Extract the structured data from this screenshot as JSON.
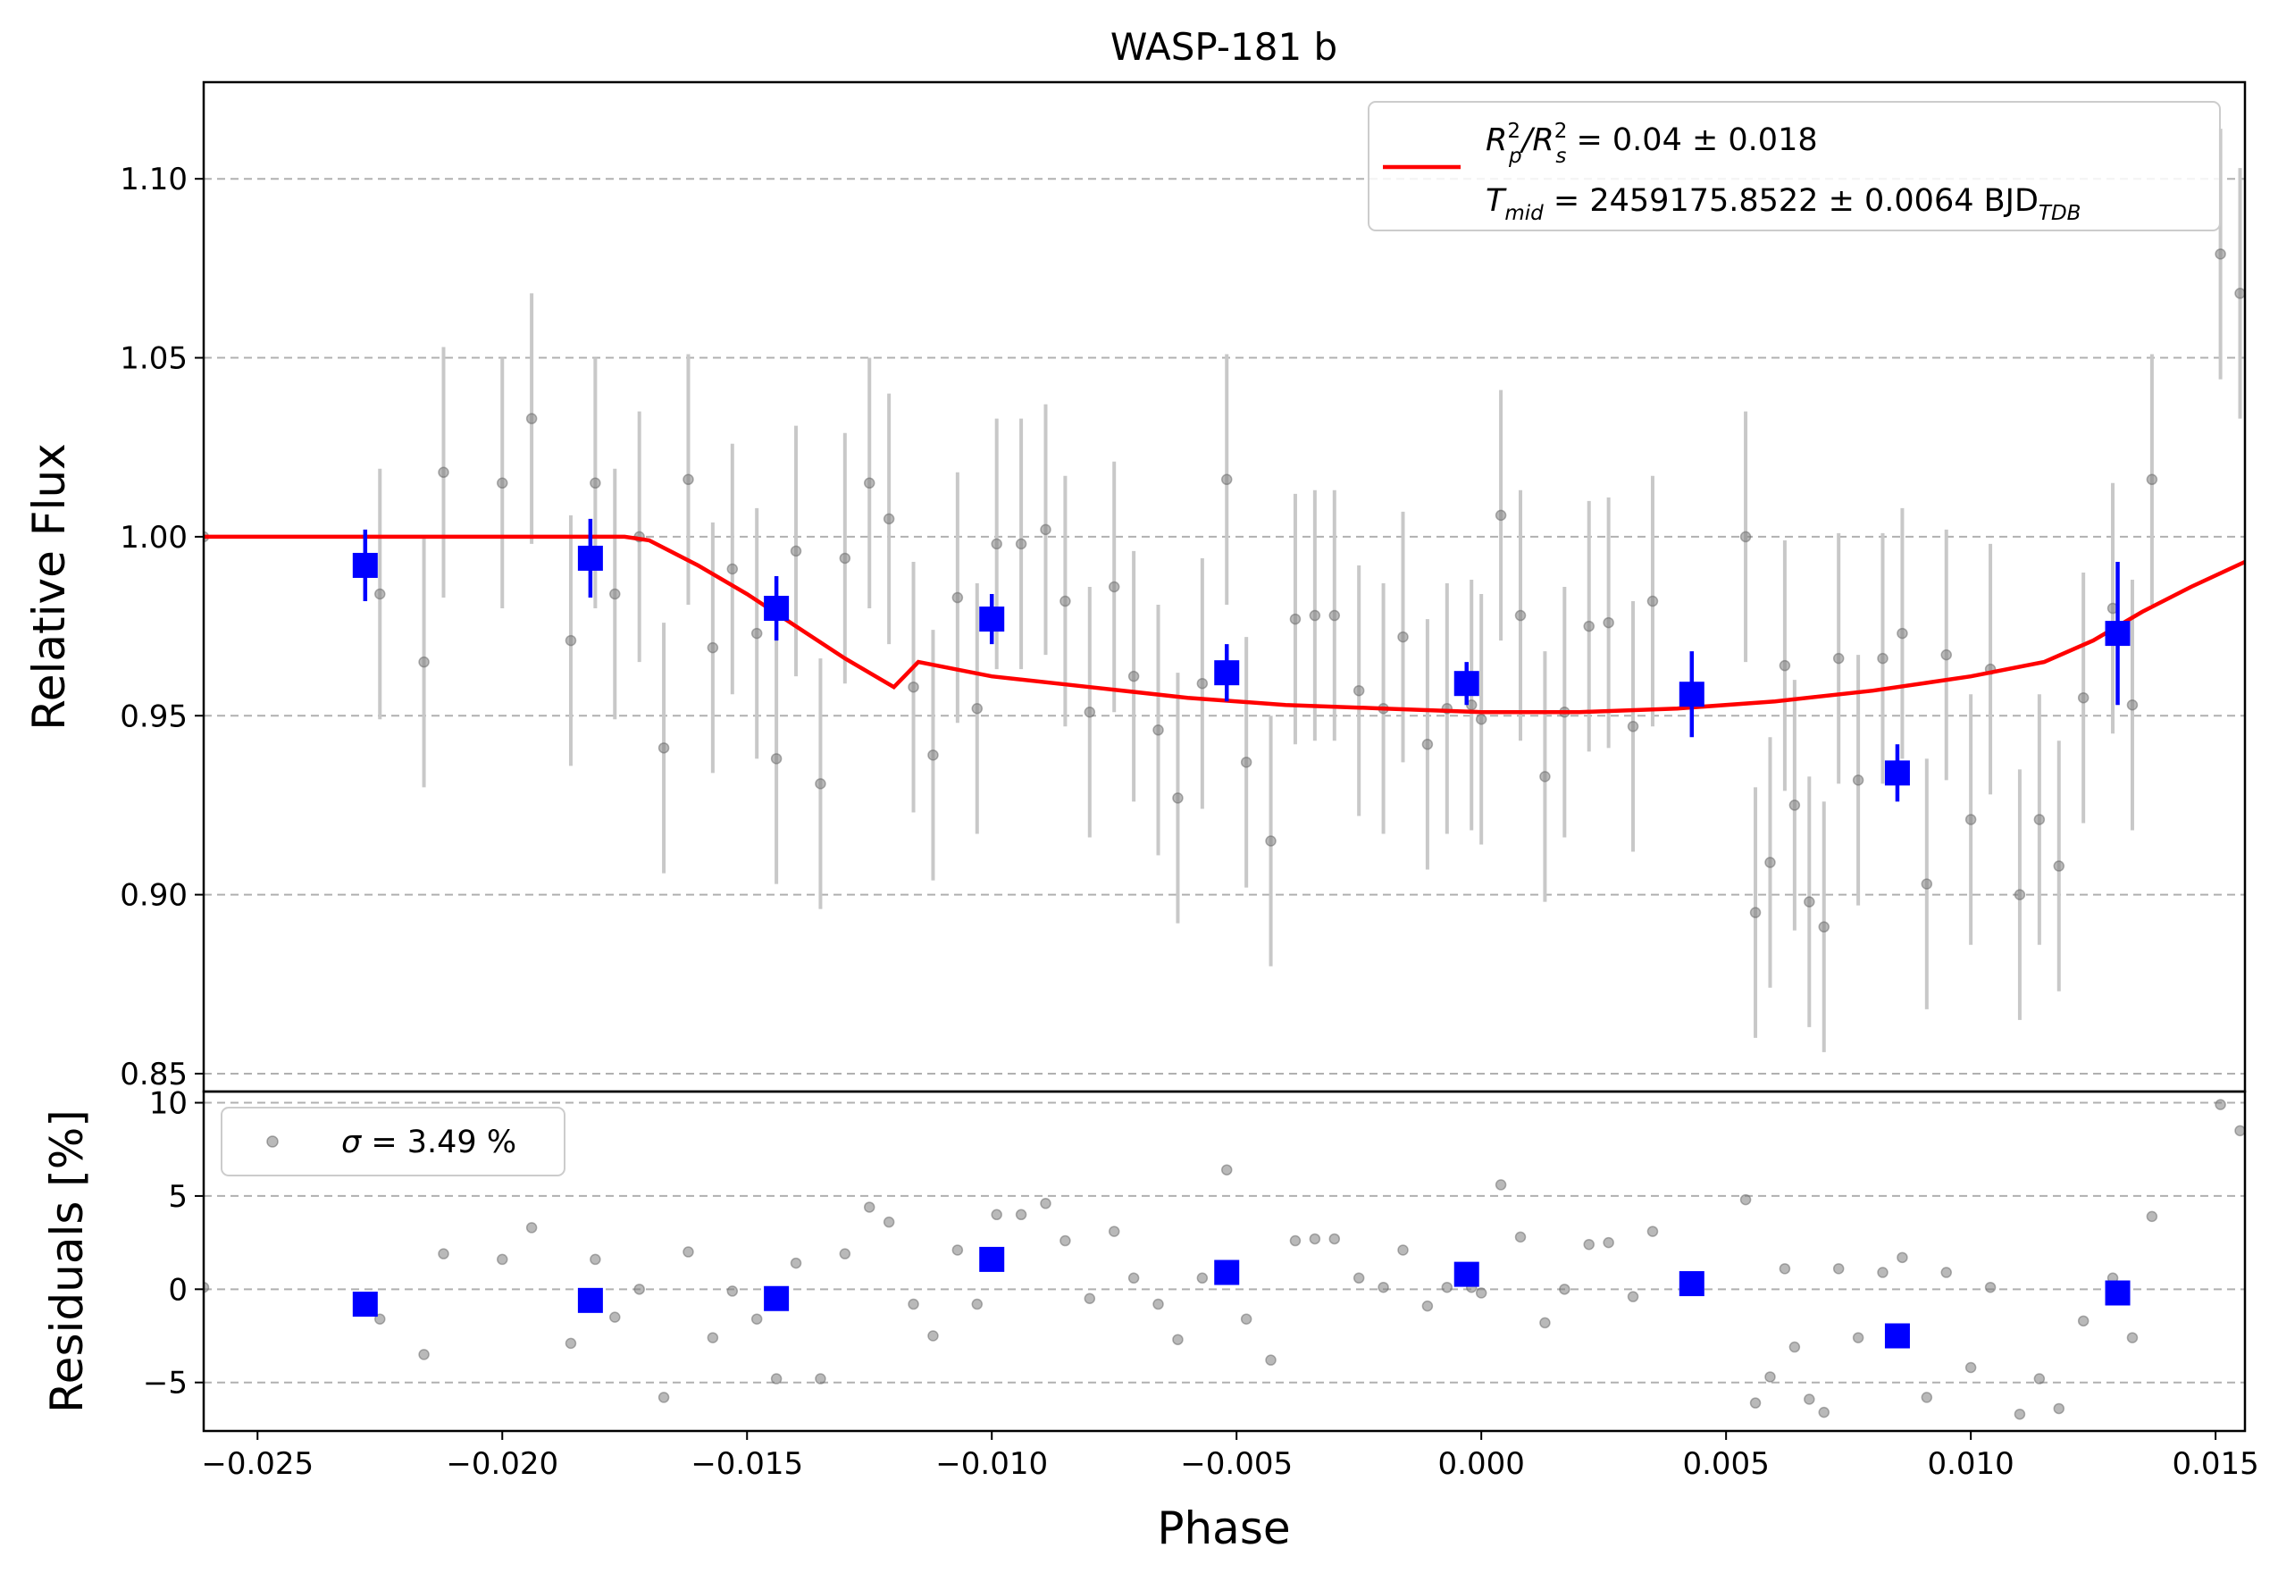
{
  "chart_data": [
    {
      "type": "scatter",
      "title": "WASP-181 b",
      "xlabel": "",
      "ylabel": "Relative Flux",
      "xlim": [
        -0.0261,
        0.0156
      ],
      "ylim": [
        0.845,
        1.127
      ],
      "yticks": [
        "0.85",
        "0.90",
        "0.95",
        "1.00",
        "1.05",
        "1.10"
      ],
      "yticks_values": [
        0.85,
        0.9,
        0.95,
        1.0,
        1.05,
        1.1
      ],
      "grid": "horizontal dashed",
      "legend": {
        "placement": "top-right",
        "line1": {
          "main": "R",
          "sup1": "2",
          "sub1": "p",
          "slash": "/R",
          "sup2": "2",
          "sub2": "s",
          "rest": " = 0.04 ± 0.018"
        },
        "line2": {
          "main": "T",
          "sub1": "mid",
          "rest": " = 2459175.8522 ± 0.0064 BJD",
          "sub2": "TDB"
        }
      },
      "colors": {
        "model": "#ff0000",
        "binned": "#0000ff",
        "raw": "#808080",
        "rawerr": "#c8c8c8",
        "grid": "#b0b0b0"
      },
      "series": [
        {
          "name": "",
          "kind": "raw",
          "points": [
            [
              -0.0261,
              1.0,
              0.0
            ],
            [
              -0.0225,
              0.984,
              0.035
            ],
            [
              -0.0216,
              0.965,
              0.035
            ],
            [
              -0.0212,
              1.018,
              0.035
            ],
            [
              -0.02,
              1.015,
              0.035
            ],
            [
              -0.0194,
              1.033,
              0.035
            ],
            [
              -0.0186,
              0.971,
              0.035
            ],
            [
              -0.0181,
              1.015,
              0.035
            ],
            [
              -0.0177,
              0.984,
              0.035
            ],
            [
              -0.0172,
              1.0,
              0.035
            ],
            [
              -0.0167,
              0.941,
              0.035
            ],
            [
              -0.0162,
              1.016,
              0.035
            ],
            [
              -0.0157,
              0.969,
              0.035
            ],
            [
              -0.0153,
              0.991,
              0.035
            ],
            [
              -0.0148,
              0.973,
              0.035
            ],
            [
              -0.0144,
              0.938,
              0.035
            ],
            [
              -0.014,
              0.996,
              0.035
            ],
            [
              -0.0135,
              0.931,
              0.035
            ],
            [
              -0.013,
              0.994,
              0.035
            ],
            [
              -0.0125,
              1.015,
              0.035
            ],
            [
              -0.0121,
              1.005,
              0.035
            ],
            [
              -0.0116,
              0.958,
              0.035
            ],
            [
              -0.0112,
              0.939,
              0.035
            ],
            [
              -0.0107,
              0.983,
              0.035
            ],
            [
              -0.0103,
              0.952,
              0.035
            ],
            [
              -0.0099,
              0.998,
              0.035
            ],
            [
              -0.0094,
              0.998,
              0.035
            ],
            [
              -0.0089,
              1.002,
              0.035
            ],
            [
              -0.0085,
              0.982,
              0.035
            ],
            [
              -0.008,
              0.951,
              0.035
            ],
            [
              -0.0075,
              0.986,
              0.035
            ],
            [
              -0.0071,
              0.961,
              0.035
            ],
            [
              -0.0066,
              0.946,
              0.035
            ],
            [
              -0.0062,
              0.927,
              0.035
            ],
            [
              -0.0057,
              0.959,
              0.035
            ],
            [
              -0.0052,
              1.016,
              0.035
            ],
            [
              -0.0048,
              0.937,
              0.035
            ],
            [
              -0.0043,
              0.915,
              0.035
            ],
            [
              -0.0038,
              0.977,
              0.035
            ],
            [
              -0.0034,
              0.978,
              0.035
            ],
            [
              -0.003,
              0.978,
              0.035
            ],
            [
              -0.0025,
              0.957,
              0.035
            ],
            [
              -0.002,
              0.952,
              0.035
            ],
            [
              -0.0016,
              0.972,
              0.035
            ],
            [
              -0.0011,
              0.942,
              0.035
            ],
            [
              -0.0007,
              0.952,
              0.035
            ],
            [
              -0.0002,
              0.953,
              0.035
            ],
            [
              0.0,
              0.949,
              0.035
            ],
            [
              0.0004,
              1.006,
              0.035
            ],
            [
              0.0008,
              0.978,
              0.035
            ],
            [
              0.0013,
              0.933,
              0.035
            ],
            [
              0.0017,
              0.951,
              0.035
            ],
            [
              0.0022,
              0.975,
              0.035
            ],
            [
              0.0026,
              0.976,
              0.035
            ],
            [
              0.0031,
              0.947,
              0.035
            ],
            [
              0.0035,
              0.982,
              0.035
            ],
            [
              0.0054,
              1.0,
              0.035
            ],
            [
              0.0056,
              0.895,
              0.035
            ],
            [
              0.0059,
              0.909,
              0.035
            ],
            [
              0.0062,
              0.964,
              0.035
            ],
            [
              0.0064,
              0.925,
              0.035
            ],
            [
              0.0067,
              0.898,
              0.035
            ],
            [
              0.007,
              0.891,
              0.035
            ],
            [
              0.0073,
              0.966,
              0.035
            ],
            [
              0.0077,
              0.932,
              0.035
            ],
            [
              0.0082,
              0.966,
              0.035
            ],
            [
              0.0086,
              0.973,
              0.035
            ],
            [
              0.0091,
              0.903,
              0.035
            ],
            [
              0.0095,
              0.967,
              0.035
            ],
            [
              0.01,
              0.921,
              0.035
            ],
            [
              0.0104,
              0.963,
              0.035
            ],
            [
              0.011,
              0.9,
              0.035
            ],
            [
              0.0114,
              0.921,
              0.035
            ],
            [
              0.0118,
              0.908,
              0.035
            ],
            [
              0.0123,
              0.955,
              0.035
            ],
            [
              0.0129,
              0.98,
              0.035
            ],
            [
              0.0133,
              0.953,
              0.035
            ],
            [
              0.0137,
              1.016,
              0.035
            ],
            [
              0.0151,
              1.079,
              0.035
            ],
            [
              0.0155,
              1.068,
              0.035
            ]
          ]
        },
        {
          "name": "",
          "kind": "binned",
          "points": [
            [
              -0.0228,
              0.992,
              0.01
            ],
            [
              -0.0182,
              0.994,
              0.011
            ],
            [
              -0.0144,
              0.98,
              0.009
            ],
            [
              -0.01,
              0.977,
              0.007
            ],
            [
              -0.0052,
              0.962,
              0.008
            ],
            [
              -0.0003,
              0.959,
              0.006
            ],
            [
              0.0043,
              0.956,
              0.012
            ],
            [
              0.0085,
              0.934,
              0.008
            ],
            [
              0.013,
              0.973,
              0.02
            ]
          ]
        },
        {
          "name": "",
          "kind": "model",
          "points": [
            [
              -0.0261,
              1.0
            ],
            [
              -0.02,
              1.0
            ],
            [
              -0.0175,
              1.0
            ],
            [
              -0.017,
              0.999
            ],
            [
              -0.016,
              0.992
            ],
            [
              -0.015,
              0.984
            ],
            [
              -0.014,
              0.975
            ],
            [
              -0.013,
              0.966
            ],
            [
              -0.012,
              0.958
            ],
            [
              -0.0115,
              0.965
            ],
            [
              -0.01,
              0.961
            ],
            [
              -0.008,
              0.958
            ],
            [
              -0.006,
              0.955
            ],
            [
              -0.004,
              0.953
            ],
            [
              -0.002,
              0.952
            ],
            [
              0.0,
              0.951
            ],
            [
              0.002,
              0.951
            ],
            [
              0.004,
              0.952
            ],
            [
              0.006,
              0.954
            ],
            [
              0.008,
              0.957
            ],
            [
              0.01,
              0.961
            ],
            [
              0.0115,
              0.965
            ],
            [
              0.0125,
              0.971
            ],
            [
              0.0135,
              0.979
            ],
            [
              0.0145,
              0.986
            ],
            [
              0.0156,
              0.993
            ]
          ]
        }
      ]
    },
    {
      "type": "scatter",
      "title": "",
      "xlabel": "Phase",
      "ylabel": "Residuals [%]",
      "xlim": [
        -0.0261,
        0.0156
      ],
      "ylim": [
        -7.6,
        10.6
      ],
      "xticks": [
        "−0.025",
        "−0.020",
        "−0.015",
        "−0.010",
        "−0.005",
        "0.000",
        "0.005",
        "0.010",
        "0.015"
      ],
      "xticks_values": [
        -0.025,
        -0.02,
        -0.015,
        -0.01,
        -0.005,
        0.0,
        0.005,
        0.01,
        0.015
      ],
      "yticks": [
        "−5",
        "0",
        "5",
        "10"
      ],
      "yticks_values": [
        -5,
        0,
        5,
        10
      ],
      "grid": "horizontal dashed",
      "legend": {
        "placement": "top-left",
        "sigma": "σ",
        "rest": " = 3.49 %"
      },
      "series": [
        {
          "name": "",
          "kind": "raw",
          "points": [
            [
              -0.0261,
              0.1
            ],
            [
              -0.0225,
              -1.6
            ],
            [
              -0.0216,
              -3.5
            ],
            [
              -0.0212,
              1.9
            ],
            [
              -0.02,
              1.6
            ],
            [
              -0.0194,
              3.3
            ],
            [
              -0.0186,
              -2.9
            ],
            [
              -0.0181,
              1.6
            ],
            [
              -0.0177,
              -1.5
            ],
            [
              -0.0172,
              0.0
            ],
            [
              -0.0167,
              -5.8
            ],
            [
              -0.0162,
              2.0
            ],
            [
              -0.0157,
              -2.6
            ],
            [
              -0.0153,
              -0.1
            ],
            [
              -0.0148,
              -1.6
            ],
            [
              -0.0144,
              -4.8
            ],
            [
              -0.014,
              1.4
            ],
            [
              -0.0135,
              -4.8
            ],
            [
              -0.013,
              1.9
            ],
            [
              -0.0125,
              4.4
            ],
            [
              -0.0121,
              3.6
            ],
            [
              -0.0116,
              -0.8
            ],
            [
              -0.0112,
              -2.5
            ],
            [
              -0.0107,
              2.1
            ],
            [
              -0.0103,
              -0.8
            ],
            [
              -0.0099,
              4.0
            ],
            [
              -0.0094,
              4.0
            ],
            [
              -0.0089,
              4.6
            ],
            [
              -0.0085,
              2.6
            ],
            [
              -0.008,
              -0.5
            ],
            [
              -0.0075,
              3.1
            ],
            [
              -0.0071,
              0.6
            ],
            [
              -0.0066,
              -0.8
            ],
            [
              -0.0062,
              -2.7
            ],
            [
              -0.0057,
              0.6
            ],
            [
              -0.0052,
              6.4
            ],
            [
              -0.0048,
              -1.6
            ],
            [
              -0.0043,
              -3.8
            ],
            [
              -0.0038,
              2.6
            ],
            [
              -0.0034,
              2.7
            ],
            [
              -0.003,
              2.7
            ],
            [
              -0.0025,
              0.6
            ],
            [
              -0.002,
              0.1
            ],
            [
              -0.0016,
              2.1
            ],
            [
              -0.0011,
              -0.9
            ],
            [
              -0.0007,
              0.1
            ],
            [
              -0.0002,
              0.1
            ],
            [
              0.0,
              -0.2
            ],
            [
              0.0004,
              5.6
            ],
            [
              0.0008,
              2.8
            ],
            [
              0.0013,
              -1.8
            ],
            [
              0.0017,
              0.0
            ],
            [
              0.0022,
              2.4
            ],
            [
              0.0026,
              2.5
            ],
            [
              0.0031,
              -0.4
            ],
            [
              0.0035,
              3.1
            ],
            [
              0.0054,
              4.8
            ],
            [
              0.0056,
              -6.1
            ],
            [
              0.0059,
              -4.7
            ],
            [
              0.0062,
              1.1
            ],
            [
              0.0064,
              -3.1
            ],
            [
              0.0067,
              -5.9
            ],
            [
              0.007,
              -6.6
            ],
            [
              0.0073,
              1.1
            ],
            [
              0.0077,
              -2.6
            ],
            [
              0.0082,
              0.9
            ],
            [
              0.0086,
              1.7
            ],
            [
              0.0091,
              -5.8
            ],
            [
              0.0095,
              0.9
            ],
            [
              0.01,
              -4.2
            ],
            [
              0.0104,
              0.1
            ],
            [
              0.011,
              -6.7
            ],
            [
              0.0114,
              -4.8
            ],
            [
              0.0118,
              -6.4
            ],
            [
              0.0123,
              -1.7
            ],
            [
              0.0129,
              0.6
            ],
            [
              0.0133,
              -2.6
            ],
            [
              0.0137,
              3.9
            ],
            [
              0.0151,
              9.9
            ],
            [
              0.0155,
              8.5
            ]
          ]
        },
        {
          "name": "",
          "kind": "binned",
          "points": [
            [
              -0.0228,
              -0.8
            ],
            [
              -0.0182,
              -0.6
            ],
            [
              -0.0144,
              -0.5
            ],
            [
              -0.01,
              1.6
            ],
            [
              -0.0052,
              0.9
            ],
            [
              -0.0003,
              0.8
            ],
            [
              0.0043,
              0.3
            ],
            [
              0.0085,
              -2.5
            ],
            [
              0.013,
              -0.2
            ]
          ]
        }
      ]
    }
  ]
}
